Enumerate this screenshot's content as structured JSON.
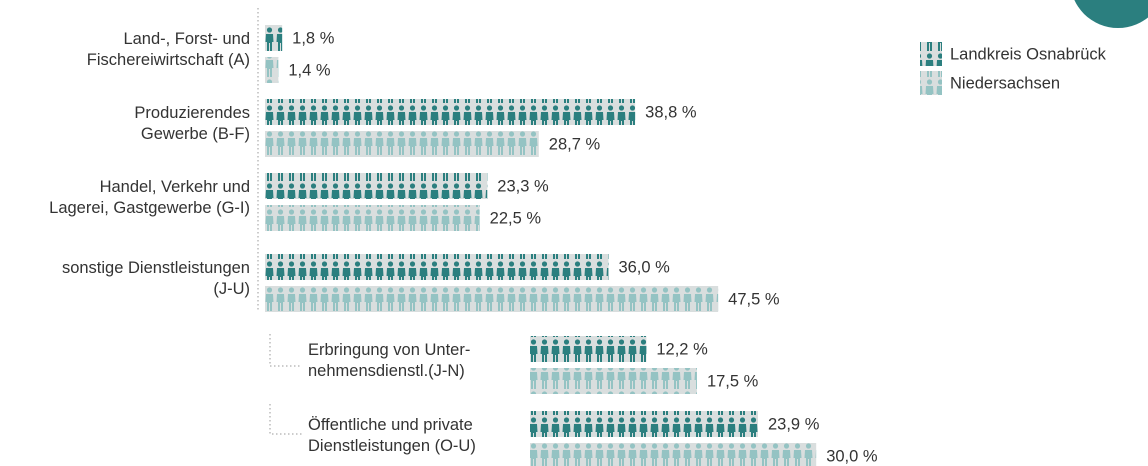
{
  "chart_data": {
    "type": "pictogram-bar",
    "categories": [
      "Land-, Forst- und\nFischereiwirtschaft (A)",
      "Produzierendes\nGewerbe (B-F)",
      "Handel, Verkehr und\nLagerei, Gastgewerbe (G-I)",
      "sonstige Dienstleistungen\n(J-U)",
      "Erbringung von Unter-\nnehmensdienstl.(J-N)",
      "Öffentliche und private\nDienstleistungen (O-U)"
    ],
    "series": [
      {
        "name": "Landkreis Osnabrück",
        "color": "#2b7f7f",
        "values": [
          1.8,
          38.8,
          23.3,
          36.0,
          12.2,
          23.9
        ],
        "value_labels": [
          "1,8 %",
          "38,8 %",
          "23,3 %",
          "36,0 %",
          "12,2 %",
          "23,9 %"
        ]
      },
      {
        "name": "Niedersachsen",
        "color": "#94c3c3",
        "values": [
          1.4,
          28.7,
          22.5,
          47.5,
          17.5,
          30.0
        ],
        "value_labels": [
          "1,4 %",
          "28,7 %",
          "22,5 %",
          "47,5 %",
          "17,5 %",
          "30,0 %"
        ]
      }
    ]
  }
}
